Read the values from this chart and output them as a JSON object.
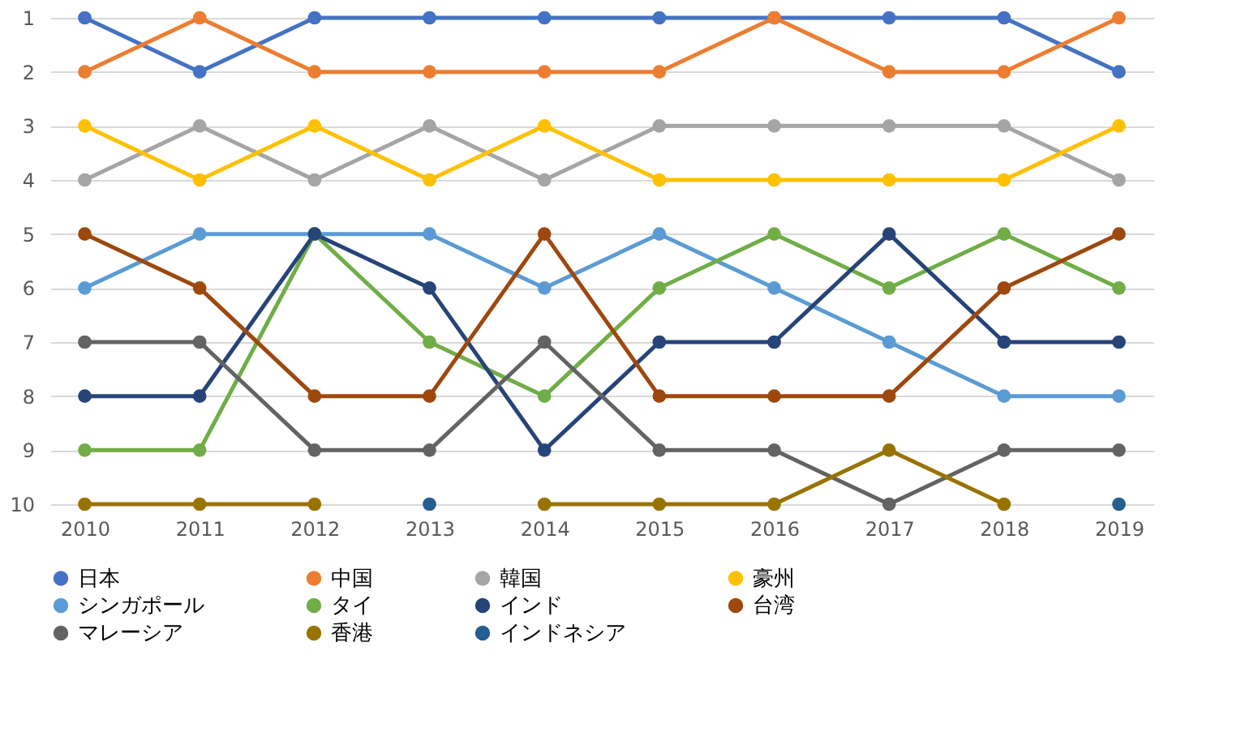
{
  "chart_data": {
    "type": "line",
    "categories": [
      "2010",
      "2011",
      "2012",
      "2013",
      "2014",
      "2015",
      "2016",
      "2017",
      "2018",
      "2019"
    ],
    "ylim": [
      10,
      1
    ],
    "yticks": [
      1,
      2,
      3,
      4,
      5,
      6,
      7,
      8,
      9,
      10
    ],
    "grid": "y",
    "legend": "bottom",
    "marker": "circle",
    "line_style": "solid",
    "series": [
      {
        "name": "日本",
        "color": "#4472c4",
        "values": [
          1,
          2,
          1,
          1,
          1,
          1,
          1,
          1,
          1,
          2
        ]
      },
      {
        "name": "中国",
        "color": "#ed7d31",
        "values": [
          2,
          1,
          2,
          2,
          2,
          2,
          1,
          2,
          2,
          1
        ]
      },
      {
        "name": "韓国",
        "color": "#a5a5a5",
        "values": [
          4,
          3,
          4,
          3,
          4,
          3,
          3,
          3,
          3,
          4
        ]
      },
      {
        "name": "豪州",
        "color": "#ffc000",
        "values": [
          3,
          4,
          3,
          4,
          3,
          4,
          4,
          4,
          4,
          3
        ]
      },
      {
        "name": "シンガポール",
        "color": "#5b9bd5",
        "values": [
          6,
          5,
          5,
          5,
          6,
          5,
          6,
          7,
          8,
          8
        ]
      },
      {
        "name": "タイ",
        "color": "#70ad47",
        "values": [
          9,
          9,
          5,
          7,
          8,
          6,
          5,
          6,
          5,
          6
        ]
      },
      {
        "name": "インド",
        "color": "#264478",
        "values": [
          8,
          8,
          5,
          6,
          9,
          7,
          7,
          5,
          7,
          7
        ]
      },
      {
        "name": "台湾",
        "color": "#9e480e",
        "values": [
          5,
          6,
          8,
          8,
          5,
          8,
          8,
          8,
          6,
          5
        ]
      },
      {
        "name": "マレーシア",
        "color": "#636363",
        "values": [
          7,
          7,
          9,
          9,
          7,
          9,
          9,
          10,
          9,
          9
        ]
      },
      {
        "name": "香港",
        "color": "#997300",
        "values": [
          10,
          10,
          10,
          null,
          10,
          10,
          10,
          9,
          10,
          null
        ]
      },
      {
        "name": "インドネシア",
        "type": "scatter",
        "color": "#255e91",
        "values": [
          null,
          null,
          null,
          10,
          null,
          null,
          null,
          null,
          null,
          10
        ]
      }
    ]
  }
}
